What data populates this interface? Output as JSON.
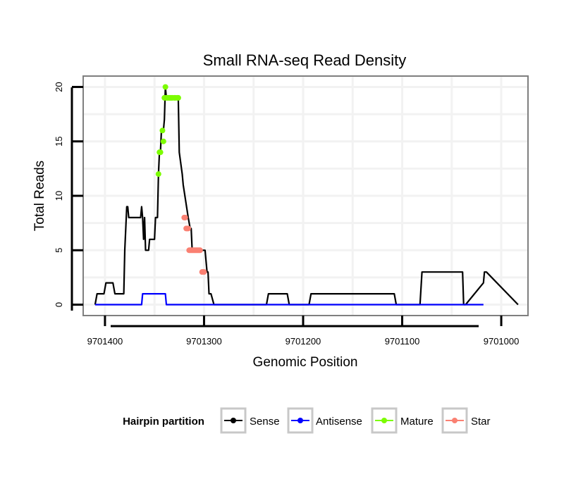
{
  "chart_data": {
    "type": "line",
    "title": "Small RNA-seq Read Density",
    "xlabel": "Genomic Position",
    "ylabel": "Total Reads",
    "xlim": [
      9701422,
      9700973
    ],
    "ylim": [
      -1,
      21
    ],
    "x_reversed": true,
    "grid": true,
    "x_ticks": [
      9701400,
      9701300,
      9701200,
      9701100,
      9701000
    ],
    "x_tick_labels": [
      "9701400",
      "9701300",
      "9701200",
      "9701100",
      "9701000"
    ],
    "y_ticks": [
      0,
      5,
      10,
      15,
      20
    ],
    "y_tick_labels": [
      "0",
      "5",
      "10",
      "15",
      "20"
    ],
    "legend": {
      "title": "Hairpin partition",
      "position": "bottom",
      "entries": [
        {
          "name": "Sense",
          "color": "#000000"
        },
        {
          "name": "Antisense",
          "color": "#0000ff"
        },
        {
          "name": "Mature",
          "color": "#7cfc00"
        },
        {
          "name": "Star",
          "color": "#fa8072"
        }
      ]
    },
    "series": [
      {
        "name": "Sense",
        "color": "#000000",
        "kind": "line",
        "x": [
          9701410,
          9701408,
          9701401,
          9701399,
          9701392,
          9701390,
          9701381,
          9701380,
          9701379,
          9701378,
          9701377,
          9701376,
          9701375,
          9701374,
          9701364,
          9701363,
          9701362,
          9701361,
          9701360,
          9701359,
          9701358,
          9701357,
          9701356,
          9701355,
          9701352,
          9701351,
          9701350,
          9701349,
          9701347,
          9701346,
          9701345,
          9701344,
          9701343,
          9701341,
          9701340,
          9701339,
          9701338,
          9701337,
          9701336,
          9701335,
          9701334,
          9701332,
          9701330,
          9701329,
          9701328,
          9701327,
          9701326,
          9701325,
          9701322,
          9701321,
          9701316,
          9701314,
          9701313,
          9701312,
          9701311,
          9701310,
          9701305,
          9701304,
          9701299,
          9701297,
          9701296,
          9701295,
          9701293,
          9701290,
          9701289,
          9701280,
          9701259,
          9701258,
          9701237,
          9701235,
          9701216,
          9701214,
          9701194,
          9701192,
          9701108,
          9701106,
          9701082,
          9701080,
          9701039,
          9701038,
          9701036,
          9701018,
          9701017,
          9701016,
          9701015,
          9700983
        ],
        "y": [
          0,
          1,
          1,
          2,
          2,
          1,
          1,
          5,
          7,
          9,
          9,
          8,
          8,
          8,
          8,
          9,
          8,
          6,
          8,
          5,
          5,
          5,
          5,
          6,
          6,
          6,
          6,
          8,
          8,
          12,
          14,
          14,
          16,
          16,
          17,
          20,
          19,
          19,
          19,
          19,
          19,
          19,
          19,
          19,
          19,
          19,
          19,
          14,
          12,
          11,
          8,
          7,
          7,
          5,
          5,
          5,
          5,
          5,
          5,
          3,
          3,
          1,
          1,
          0,
          0,
          0,
          0,
          0,
          0,
          1,
          1,
          0,
          0,
          1,
          1,
          0,
          0,
          3,
          3,
          0,
          0,
          2,
          3,
          3,
          3,
          0
        ]
      },
      {
        "name": "Antisense",
        "color": "#0000ff",
        "kind": "line",
        "x": [
          9701410,
          9701363,
          9701362,
          9701339,
          9701338,
          9701018
        ],
        "y": [
          0,
          0,
          1,
          1,
          0,
          0
        ]
      },
      {
        "name": "Mature",
        "color": "#7cfc00",
        "kind": "points",
        "x": [
          9701346,
          9701345,
          9701344,
          9701342,
          9701341,
          9701340,
          9701339,
          9701338,
          9701337,
          9701336,
          9701335,
          9701334,
          9701333,
          9701332,
          9701330,
          9701329,
          9701327,
          9701326
        ],
        "y": [
          12,
          14,
          14,
          16,
          15,
          19,
          20,
          19,
          19,
          19,
          19,
          19,
          19,
          19,
          19,
          19,
          19,
          19
        ]
      },
      {
        "name": "Star",
        "color": "#fa8072",
        "kind": "points",
        "x": [
          9701320,
          9701319,
          9701318,
          9701317,
          9701316,
          9701315,
          9701314,
          9701313,
          9701312,
          9701311,
          9701310,
          9701309,
          9701308,
          9701307,
          9701306,
          9701305,
          9701304,
          9701302,
          9701301,
          9701300
        ],
        "y": [
          8,
          8,
          7,
          7,
          7,
          5,
          5,
          5,
          5,
          5,
          5,
          5,
          5,
          5,
          5,
          5,
          5,
          3,
          3,
          3
        ]
      }
    ]
  }
}
